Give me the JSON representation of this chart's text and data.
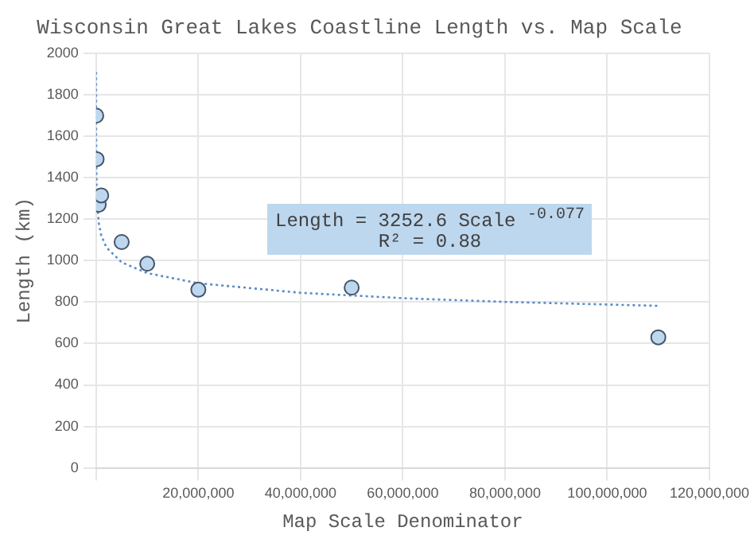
{
  "chart_data": {
    "type": "scatter",
    "title": "Wisconsin Great Lakes Coastline Length vs. Map Scale",
    "xlabel": "Map Scale Denominator",
    "ylabel": "Length (km)",
    "x": [
      24000,
      100000,
      500000,
      1000000,
      5000000,
      10000000,
      20000000,
      50000000,
      110000000
    ],
    "series": [
      {
        "name": null,
        "type": "scatter",
        "color": "#bdd7ee",
        "values": [
          1700,
          1490,
          1270,
          1315,
          1090,
          985,
          860,
          870,
          630
        ]
      },
      {
        "type": "line",
        "color": "#5b8bc9",
        "line_style": "dotted",
        "marker": "none",
        "x": [
          1000,
          10000,
          100000,
          500000,
          1000000,
          2000000,
          5000000,
          10000000,
          20000000,
          40000000,
          60000000,
          80000000,
          110000000
        ],
        "values": [
          1910,
          1601,
          1340,
          1184,
          1122,
          1064,
          992,
          940,
          891,
          845,
          819,
          801,
          782
        ]
      }
    ],
    "xlim": [
      0,
      120000000
    ],
    "xticks": [
      {
        "value": 0,
        "label": null
      },
      {
        "value": 20000000,
        "label": "20,000,000"
      },
      {
        "value": 40000000,
        "label": "40,000,000"
      },
      {
        "value": 60000000,
        "label": "60,000,000"
      },
      {
        "value": 80000000,
        "label": "80,000,000"
      },
      {
        "value": 100000000,
        "label": "100,000,000"
      },
      {
        "value": 120000000,
        "label": "120,000,000"
      }
    ],
    "ylim": [
      0,
      2000
    ],
    "yticks": [
      0,
      200,
      400,
      600,
      800,
      1000,
      1200,
      1400,
      1600,
      1800,
      2000
    ],
    "annotations": [
      "Length = 3252.6 Scale $^{-0.077}$\nR² = 0.88"
    ],
    "grid": true,
    "legend": false,
    "marker": "circle"
  }
}
